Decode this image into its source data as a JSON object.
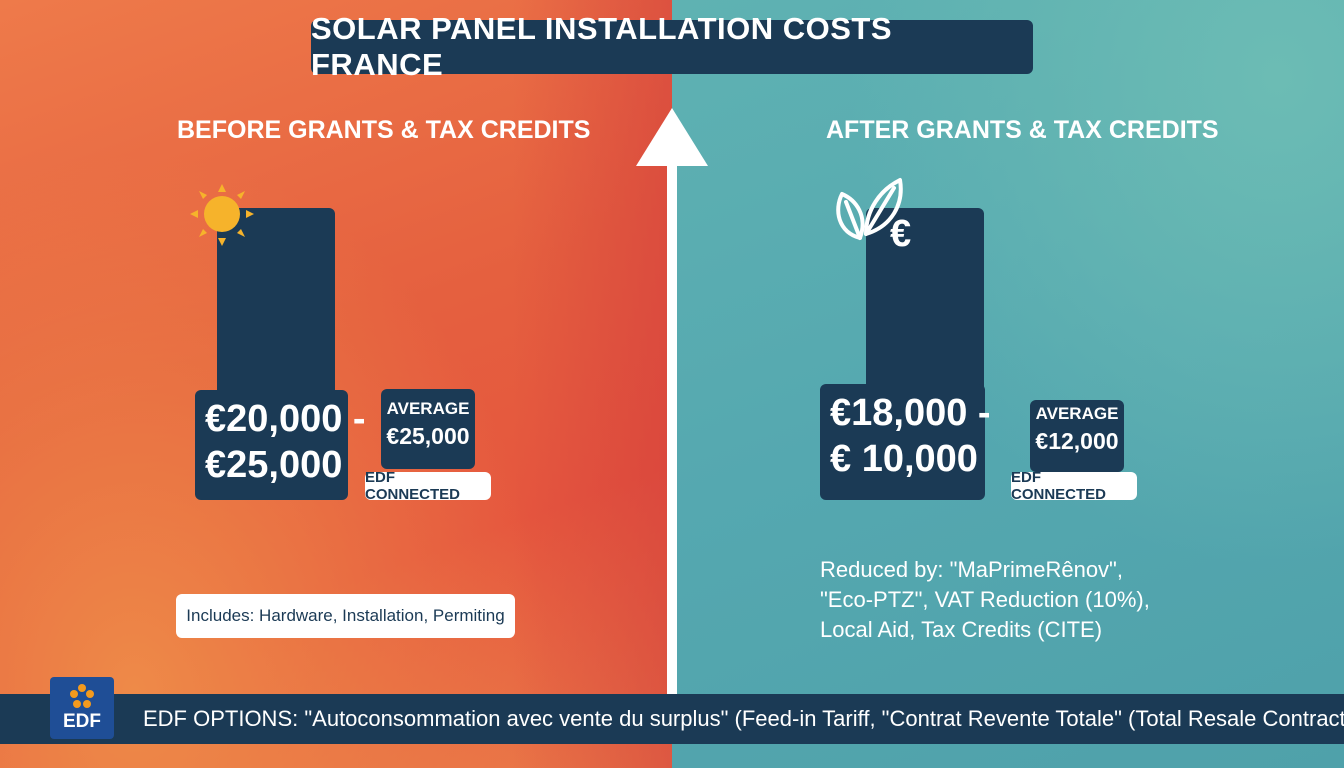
{
  "title": "SOLAR PANEL INSTALLATION COSTS FRANCE",
  "before": {
    "heading": "BEFORE GRANTS & TAX CREDITS",
    "price_line1": "€20,000 -",
    "price_line2": "€25,000",
    "average_label": "AVERAGE",
    "average_value": "€25,000",
    "tag": "EDF CONNECTED",
    "includes": "Includes: Hardware, Installation, Permiting",
    "icon": "sun-icon"
  },
  "after": {
    "heading": "AFTER GRANTS & TAX CREDITS",
    "euro_symbol": "€",
    "price_line1": "€18,000 -",
    "price_line2": "€ 10,000",
    "average_label": "AVERAGE",
    "average_value": "€12,000",
    "tag": "EDF CONNECTED",
    "reduced_line1": "Reduced by: \"MaPrimeRênov\",",
    "reduced_line2": "\"Eco-PTZ\", VAT Reduction (10%),",
    "reduced_line3": "Local Aid, Tax Credits (CITE)",
    "icon": "leaf-icon"
  },
  "footer": {
    "logo_text": "EDF",
    "text": "EDF OPTIONS: \"Autoconsommation avec vente du surplus\" (Feed-in Tariff, \"Contrat Revente Totale\" (Total Resale Contract)"
  },
  "colors": {
    "navy": "#1b3a55",
    "orange": "#e5603f",
    "teal": "#55a8b0",
    "sun": "#f6b32b",
    "edf_blue": "#1f4e96"
  }
}
